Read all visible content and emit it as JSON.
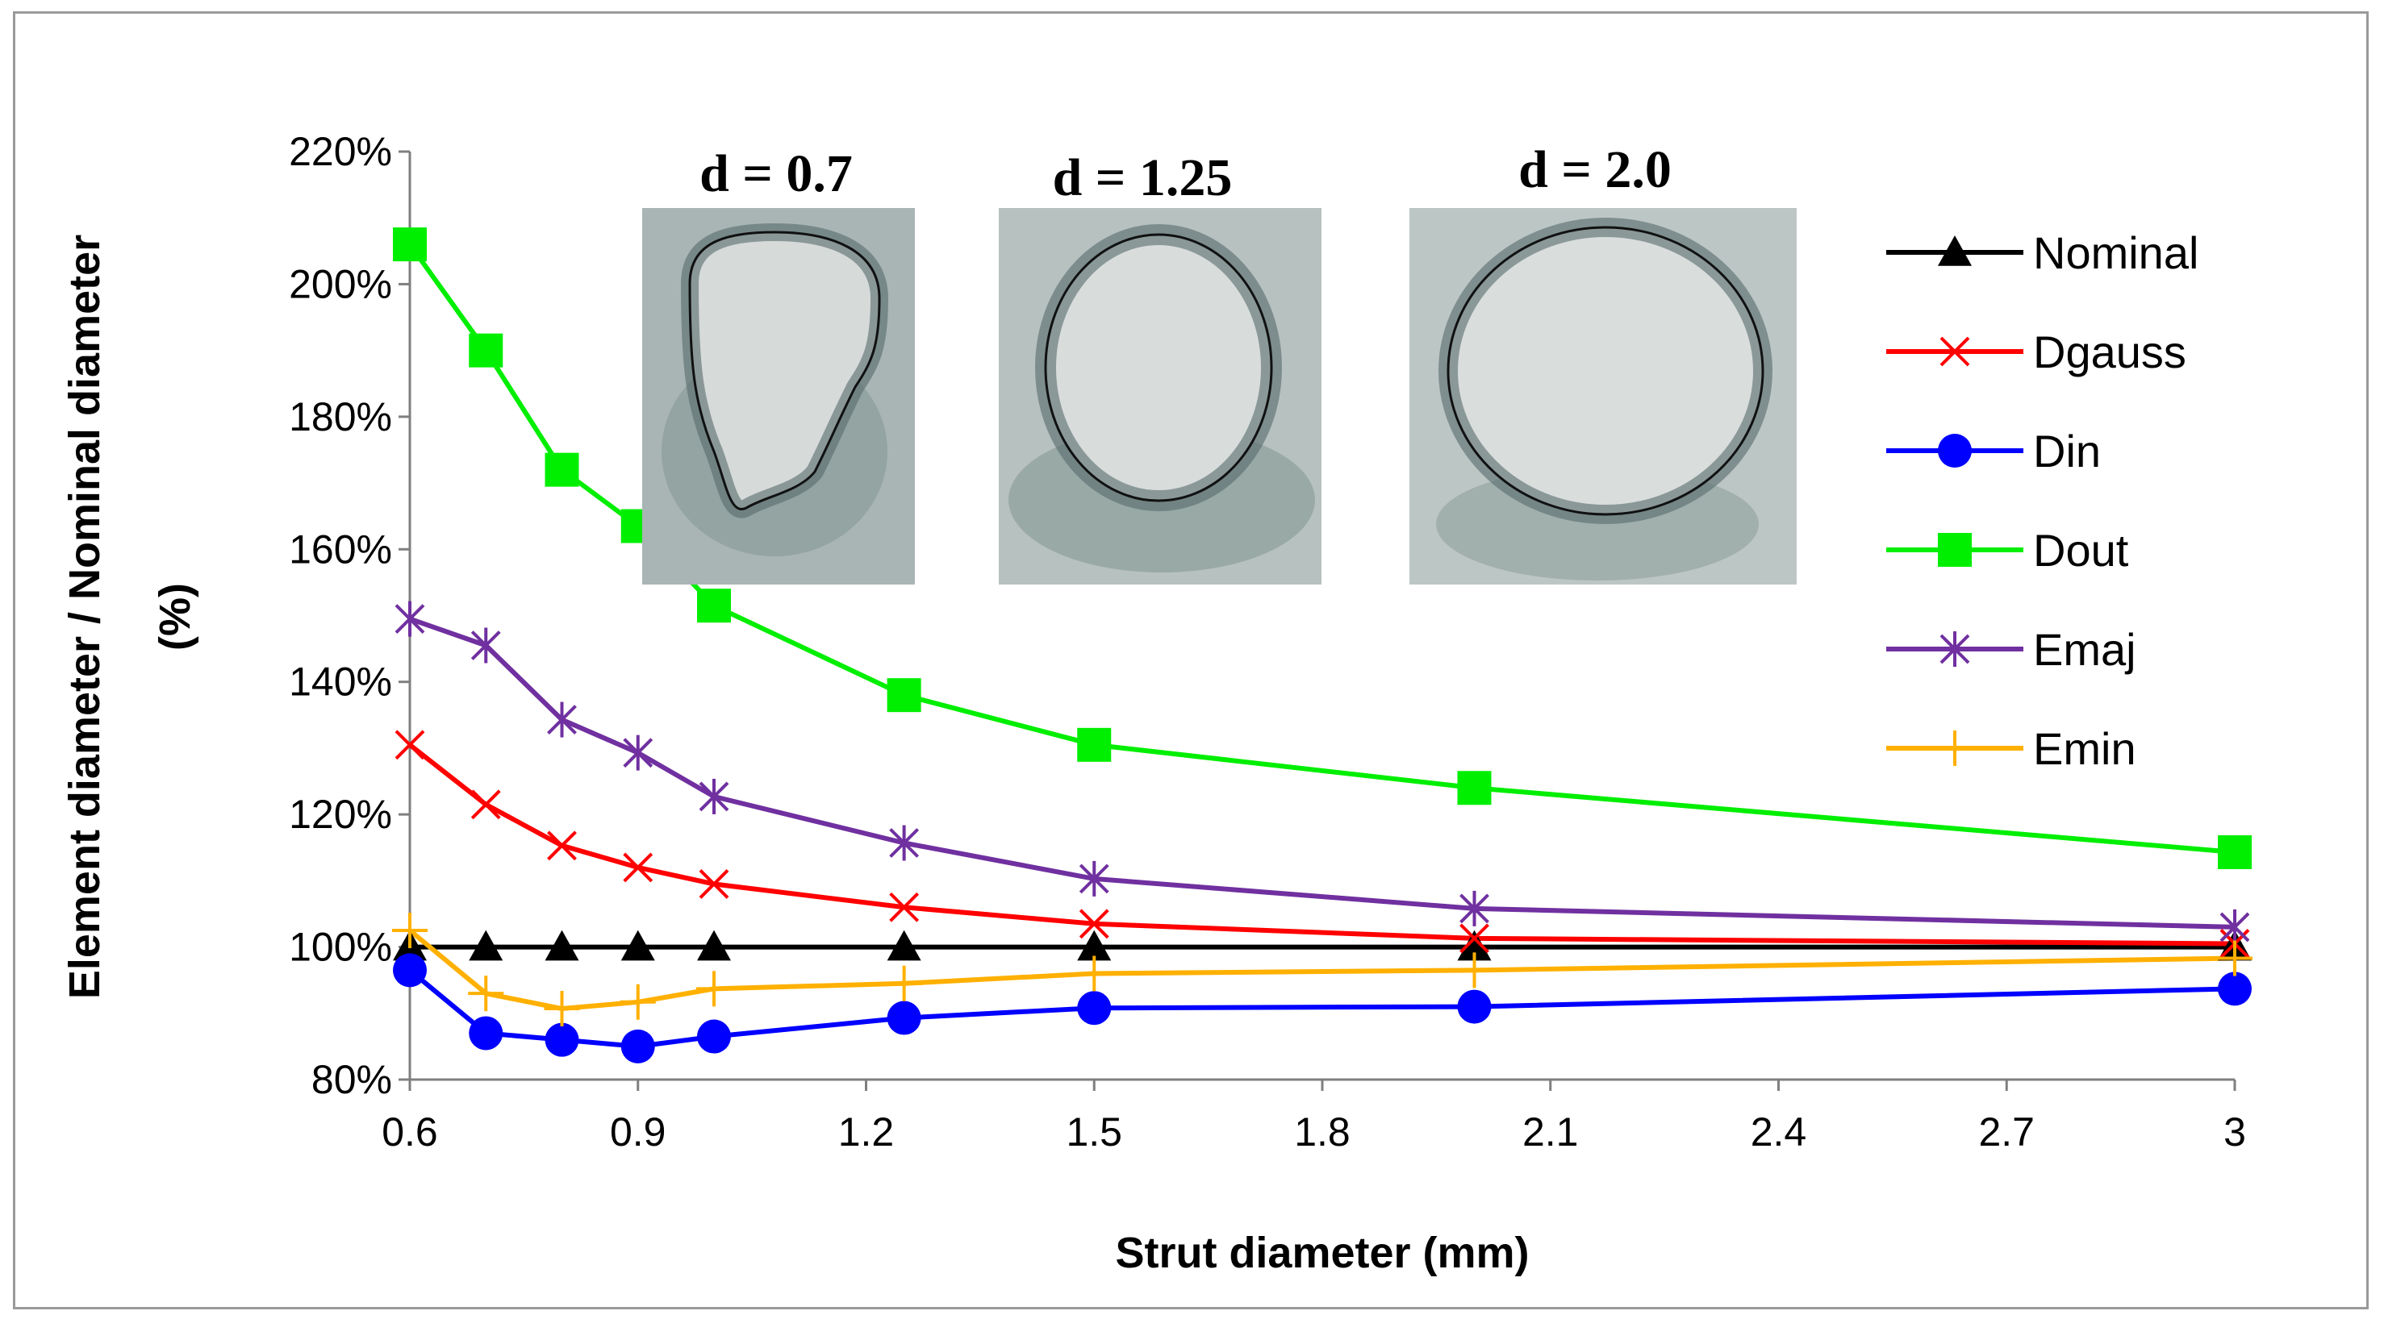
{
  "chart_data": {
    "type": "line",
    "title": "",
    "xlabel": "Strut diameter (mm)",
    "ylabel_line1": "Element diameter / Nominal diameter",
    "ylabel_line2": "(%)",
    "xlim": [
      0.6,
      3.0
    ],
    "ylim": [
      80,
      220
    ],
    "x_ticks": [
      0.6,
      0.9,
      1.2,
      1.5,
      1.8,
      2.1,
      2.4,
      2.7,
      3.0
    ],
    "x_tick_labels": [
      "0.6",
      "0.9",
      "1.2",
      "1.5",
      "1.8",
      "2.1",
      "2.4",
      "2.7",
      "3"
    ],
    "y_ticks": [
      80,
      100,
      120,
      140,
      160,
      180,
      200,
      220
    ],
    "y_tick_labels": [
      "80%",
      "100%",
      "120%",
      "140%",
      "160%",
      "180%",
      "200%",
      "220%"
    ],
    "grid": false,
    "legend_position": "right",
    "x": [
      0.6,
      0.7,
      0.8,
      0.9,
      1.0,
      1.25,
      1.5,
      2.0,
      3.0
    ],
    "series": [
      {
        "name": "Nominal",
        "color": "#000000",
        "marker": "triangle",
        "values": [
          100,
          100,
          100,
          100,
          100,
          100,
          100,
          100,
          100
        ]
      },
      {
        "name": "Dgauss",
        "color": "#ff0000",
        "marker": "x",
        "values": [
          130.5,
          121.5,
          115.3,
          112,
          109.5,
          106,
          103.5,
          101.3,
          100.5
        ]
      },
      {
        "name": "Din",
        "color": "#0000ff",
        "marker": "circle",
        "values": [
          96.5,
          87,
          86,
          85,
          86.5,
          89.3,
          90.8,
          91,
          93.7
        ]
      },
      {
        "name": "Dout",
        "color": "#00ee00",
        "marker": "square",
        "values": [
          206,
          190,
          172,
          163.5,
          151.5,
          138,
          130.5,
          124,
          114.3
        ]
      },
      {
        "name": "Emaj",
        "color": "#7030a0",
        "marker": "asterisk",
        "values": [
          149.5,
          145.5,
          134.3,
          129.3,
          122.7,
          115.7,
          110.3,
          105.8,
          103
        ]
      },
      {
        "name": "Emin",
        "color": "#ffb000",
        "marker": "plus",
        "values": [
          102.5,
          93,
          90.7,
          91.7,
          93.7,
          94.5,
          96,
          96.5,
          98.3
        ]
      }
    ],
    "insets": [
      {
        "caption": "d = 0.7"
      },
      {
        "caption": "d = 1.25"
      },
      {
        "caption": "d = 2.0"
      }
    ]
  }
}
